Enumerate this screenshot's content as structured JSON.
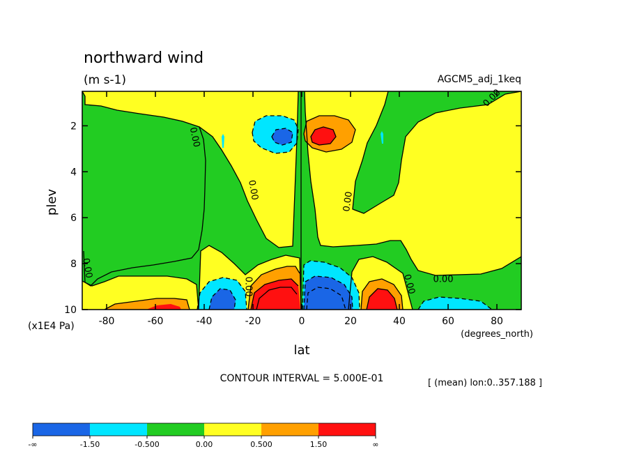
{
  "chart_data": {
    "type": "heatmap",
    "title": "northward wind",
    "subtitle": "(m s-1)",
    "dataset_label": "AGCM5_adj_1keq",
    "xlabel": "lat",
    "xunits": "(degrees_north)",
    "ylabel": "plev",
    "yunits": "(x1E4 Pa)",
    "xlim": [
      -90,
      90
    ],
    "ylim": [
      10,
      0.5
    ],
    "x_ticks": [
      -80,
      -60,
      -40,
      -20,
      0,
      20,
      40,
      60,
      80
    ],
    "y_ticks": [
      2,
      4,
      6,
      8,
      10
    ],
    "contour_interval_label": "CONTOUR INTERVAL = 5.000E-01",
    "mean_label": "[ (mean) lon:0..357.188 ]",
    "contour_labels": [
      {
        "text": "0.00",
        "lat": -44,
        "plev": 2.5,
        "angle": 78
      },
      {
        "text": "0.00",
        "lat": -20,
        "plev": 4.8,
        "angle": 80
      },
      {
        "text": "0.00",
        "lat": 19,
        "plev": 5.3,
        "angle": -82
      },
      {
        "text": "0.00",
        "lat": 78,
        "plev": 0.8,
        "angle": -45
      },
      {
        "text": "0.00",
        "lat": -88,
        "plev": 8.2,
        "angle": 80
      },
      {
        "text": "0.00",
        "lat": -22,
        "plev": 9.0,
        "angle": 90
      },
      {
        "text": "0.00",
        "lat": 44,
        "plev": 8.9,
        "angle": 75
      },
      {
        "text": "0.00",
        "lat": 58,
        "plev": 8.7,
        "angle": 0
      }
    ],
    "colorbar": {
      "colors": [
        "#1a66e6",
        "#00e6ff",
        "#22cc22",
        "#ffff22",
        "#ffa000",
        "#ff1010"
      ],
      "labels": [
        "-∞",
        "-1.50",
        "-0.500",
        "0.00",
        "0.500",
        "1.50",
        "∞"
      ]
    },
    "features": [
      {
        "type": "extremum",
        "lat": -12,
        "plev": 2.0,
        "sign": "negative",
        "core": 1.5
      },
      {
        "type": "extremum",
        "lat": 8,
        "plev": 2.0,
        "sign": "positive",
        "core": 1.5
      },
      {
        "type": "extremum",
        "lat": -33,
        "plev": 9.5,
        "sign": "negative",
        "core": 1.5
      },
      {
        "type": "extremum",
        "lat": -9,
        "plev": 9.3,
        "sign": "positive",
        "core": 1.5
      },
      {
        "type": "extremum",
        "lat": 9,
        "plev": 9.3,
        "sign": "negative",
        "core": 1.5
      },
      {
        "type": "extremum",
        "lat": 33,
        "plev": 9.5,
        "sign": "positive",
        "core": 1.5
      },
      {
        "type": "extremum",
        "lat": -60,
        "plev": 9.9,
        "sign": "positive",
        "core": 0.5
      },
      {
        "type": "extremum",
        "lat": 62,
        "plev": 9.9,
        "sign": "negative",
        "core": 0.5
      }
    ]
  }
}
